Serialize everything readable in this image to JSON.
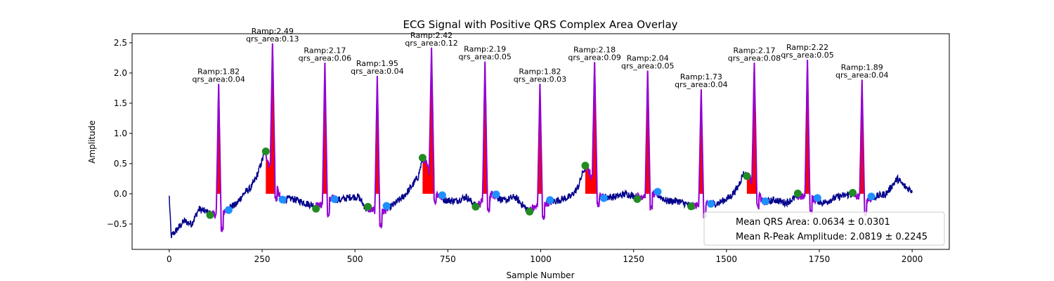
{
  "chart_data": {
    "type": "line",
    "title": "ECG Signal with Positive QRS Complex Area Overlay",
    "xlabel": "Sample Number",
    "ylabel": "Amplitude",
    "xlim": [
      -100,
      2100
    ],
    "ylim": [
      -0.92,
      2.65
    ],
    "xticks": [
      0,
      250,
      500,
      750,
      1000,
      1250,
      1500,
      1750,
      2000
    ],
    "yticks": [
      -0.5,
      0.0,
      0.5,
      1.0,
      1.5,
      2.0,
      2.5
    ],
    "xtick_labels": [
      "0",
      "250",
      "500",
      "750",
      "1000",
      "1250",
      "1500",
      "1750",
      "2000"
    ],
    "ytick_labels": [
      "−0.5",
      "0.0",
      "0.5",
      "1.0",
      "1.5",
      "2.0",
      "2.5"
    ],
    "baseline_points": [
      [
        0,
        -0.05
      ],
      [
        5,
        -0.7
      ],
      [
        20,
        -0.6
      ],
      [
        40,
        -0.45
      ],
      [
        60,
        -0.5
      ],
      [
        80,
        -0.25
      ],
      [
        100,
        -0.3
      ],
      [
        140,
        -0.38
      ],
      [
        160,
        -0.22
      ],
      [
        180,
        -0.18
      ],
      [
        200,
        0.0
      ],
      [
        220,
        0.1
      ],
      [
        235,
        0.28
      ],
      [
        250,
        0.55
      ],
      [
        258,
        0.72
      ],
      [
        262,
        0.62
      ],
      [
        300,
        -0.1
      ],
      [
        330,
        -0.08
      ],
      [
        350,
        -0.12
      ],
      [
        380,
        -0.18
      ],
      [
        405,
        -0.2
      ],
      [
        440,
        -0.08
      ],
      [
        460,
        -0.1
      ],
      [
        490,
        -0.05
      ],
      [
        510,
        -0.05
      ],
      [
        530,
        -0.25
      ],
      [
        575,
        -0.3
      ],
      [
        600,
        -0.2
      ],
      [
        630,
        -0.05
      ],
      [
        650,
        0.1
      ],
      [
        670,
        0.28
      ],
      [
        682,
        0.58
      ],
      [
        692,
        0.5
      ],
      [
        720,
        0.0
      ],
      [
        740,
        -0.1
      ],
      [
        770,
        -0.12
      ],
      [
        800,
        -0.05
      ],
      [
        825,
        -0.2
      ],
      [
        870,
        0.0
      ],
      [
        900,
        -0.12
      ],
      [
        930,
        -0.05
      ],
      [
        965,
        -0.27
      ],
      [
        1020,
        -0.15
      ],
      [
        1050,
        -0.1
      ],
      [
        1080,
        -0.05
      ],
      [
        1100,
        0.1
      ],
      [
        1115,
        0.38
      ],
      [
        1125,
        0.45
      ],
      [
        1160,
        -0.05
      ],
      [
        1200,
        -0.05
      ],
      [
        1230,
        0.0
      ],
      [
        1260,
        -0.05
      ],
      [
        1310,
        0.0
      ],
      [
        1340,
        -0.12
      ],
      [
        1370,
        -0.12
      ],
      [
        1405,
        -0.2
      ],
      [
        1450,
        -0.18
      ],
      [
        1480,
        -0.15
      ],
      [
        1510,
        -0.05
      ],
      [
        1530,
        0.1
      ],
      [
        1545,
        0.33
      ],
      [
        1560,
        0.3
      ],
      [
        1600,
        -0.15
      ],
      [
        1630,
        -0.1
      ],
      [
        1660,
        -0.15
      ],
      [
        1690,
        -0.05
      ],
      [
        1720,
        -0.05
      ],
      [
        1760,
        -0.15
      ],
      [
        1800,
        -0.05
      ],
      [
        1840,
        0.0
      ],
      [
        1870,
        -0.12
      ],
      [
        1900,
        -0.05
      ],
      [
        1930,
        0.0
      ],
      [
        1960,
        0.25
      ],
      [
        1980,
        0.12
      ],
      [
        2000,
        0.05
      ]
    ],
    "beats": [
      {
        "r": 133,
        "amp": 1.82,
        "area": 0.04,
        "on": 110,
        "off": 160,
        "label_r": "Ramp:1.82",
        "label_a": "qrs_area:0.04"
      },
      {
        "r": 278,
        "amp": 2.49,
        "area": 0.13,
        "on": 260,
        "off": 305,
        "label_r": "Ramp:2.49",
        "label_a": "qrs_area:0.13"
      },
      {
        "r": 419,
        "amp": 2.17,
        "area": 0.06,
        "on": 395,
        "off": 445,
        "label_r": "Ramp:2.17",
        "label_a": "qrs_area:0.06"
      },
      {
        "r": 560,
        "amp": 1.95,
        "area": 0.04,
        "on": 535,
        "off": 585,
        "label_r": "Ramp:1.95",
        "label_a": "qrs_area:0.04"
      },
      {
        "r": 706,
        "amp": 2.42,
        "area": 0.12,
        "on": 682,
        "off": 735,
        "label_r": "Ramp:2.42",
        "label_a": "qrs_area:0.12"
      },
      {
        "r": 850,
        "amp": 2.19,
        "area": 0.05,
        "on": 825,
        "off": 880,
        "label_r": "Ramp:2.19",
        "label_a": "qrs_area:0.05"
      },
      {
        "r": 998,
        "amp": 1.82,
        "area": 0.03,
        "on": 970,
        "off": 1025,
        "label_r": "Ramp:1.82",
        "label_a": "qrs_area:0.03"
      },
      {
        "r": 1145,
        "amp": 2.18,
        "area": 0.09,
        "on": 1120,
        "off": 1170,
        "label_r": "Ramp:2.18",
        "label_a": "qrs_area:0.09"
      },
      {
        "r": 1288,
        "amp": 2.04,
        "area": 0.05,
        "on": 1260,
        "off": 1315,
        "label_r": "Ramp:2.04",
        "label_a": "qrs_area:0.05"
      },
      {
        "r": 1432,
        "amp": 1.73,
        "area": 0.04,
        "on": 1405,
        "off": 1458,
        "label_r": "Ramp:1.73",
        "label_a": "qrs_area:0.04"
      },
      {
        "r": 1575,
        "amp": 2.17,
        "area": 0.08,
        "on": 1555,
        "off": 1605,
        "label_r": "Ramp:2.17",
        "label_a": "qrs_area:0.08"
      },
      {
        "r": 1718,
        "amp": 2.22,
        "area": 0.05,
        "on": 1692,
        "off": 1745,
        "label_r": "Ramp:2.22",
        "label_a": "qrs_area:0.05"
      },
      {
        "r": 1865,
        "amp": 1.89,
        "area": 0.04,
        "on": 1840,
        "off": 1890,
        "label_r": "Ramp:1.89",
        "label_a": "qrs_area:0.04"
      }
    ],
    "legend": {
      "placement": "lower-right",
      "entries": [
        "Mean QRS Area: 0.0634 ± 0.0301",
        "Mean R-Peak Amplitude: 2.0819 ± 0.2245"
      ]
    },
    "colors": {
      "signal": "#00008b",
      "qrs": "#9400d3",
      "area": "#ff0000",
      "onset": "#228b22",
      "offset": "#1e90ff"
    }
  }
}
